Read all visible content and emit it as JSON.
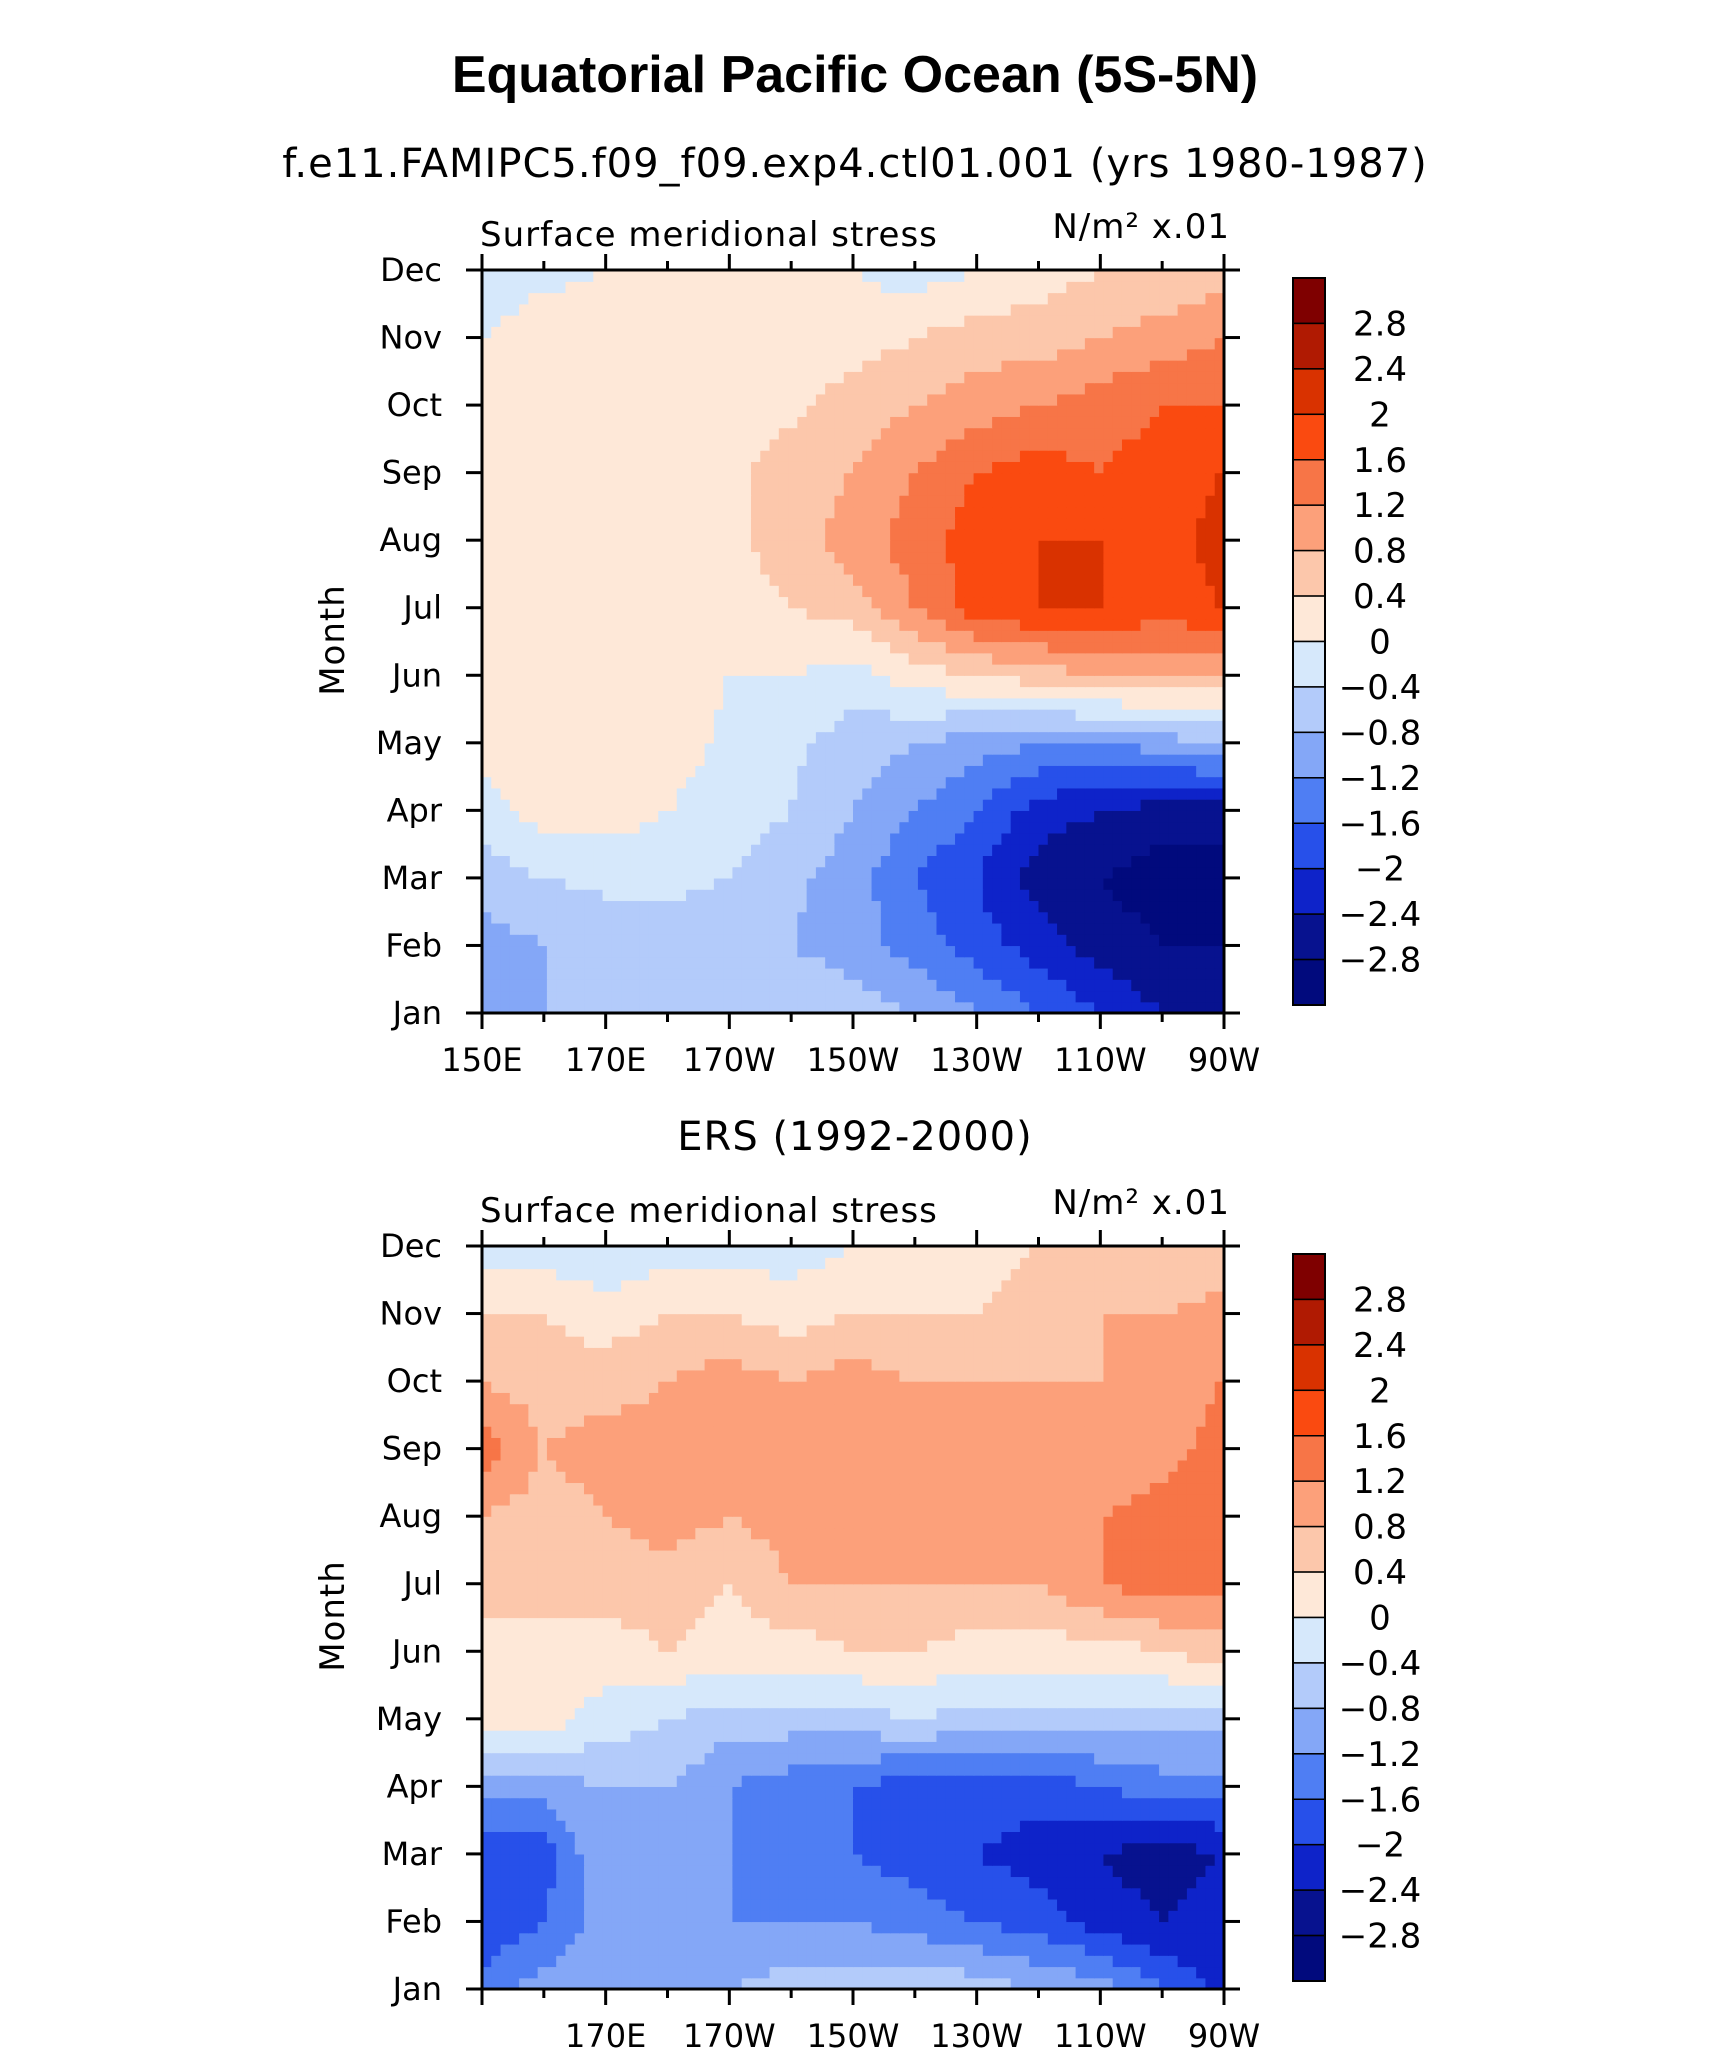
{
  "title": "Equatorial Pacific Ocean (5S-5N)",
  "chart_data": [
    {
      "type": "heatmap",
      "subtitle": "f.e11.FAMIPC5.f09_f09.exp4.ctl01.001 (yrs 1980-1987)",
      "left_label": "Surface meridional stress",
      "right_label": "N/m² x.01",
      "ylabel": "Month",
      "xlabel": "",
      "x_tick_labels": [
        "150E",
        "170E",
        "170W",
        "150W",
        "130W",
        "110W",
        "90W"
      ],
      "x": [
        150,
        160,
        170,
        180,
        190,
        200,
        210,
        220,
        230,
        240,
        250,
        260,
        270
      ],
      "y": [
        "Jan",
        "Feb",
        "Mar",
        "Apr",
        "May",
        "Jun",
        "Jul",
        "Aug",
        "Sep",
        "Oct",
        "Nov",
        "Dec"
      ],
      "z": [
        [
          -0.8,
          -0.8,
          -0.8,
          -0.6,
          -0.4,
          -0.4,
          -0.6,
          -0.8,
          -1.2,
          -1.6,
          -2.0,
          -2.4,
          -2.8
        ],
        [
          -1.0,
          -0.8,
          -0.7,
          -0.6,
          -0.6,
          -0.8,
          -1.0,
          -1.4,
          -1.8,
          -2.2,
          -2.6,
          -2.8,
          -2.8
        ],
        [
          -0.6,
          -0.4,
          -0.3,
          -0.3,
          -0.4,
          -0.7,
          -1.0,
          -1.6,
          -2.0,
          -2.6,
          -2.8,
          -3.0,
          -3.0
        ],
        [
          -0.2,
          0.2,
          0.2,
          0.0,
          -0.2,
          -0.4,
          -0.8,
          -1.2,
          -1.6,
          -2.2,
          -2.4,
          -2.6,
          -2.6
        ],
        [
          0.2,
          0.2,
          0.2,
          0.2,
          -0.1,
          -0.3,
          -0.6,
          -0.8,
          -1.0,
          -1.2,
          -1.2,
          -1.0,
          -0.8
        ],
        [
          0.2,
          0.2,
          0.2,
          0.2,
          0.0,
          0.0,
          -0.2,
          0.2,
          0.4,
          0.6,
          0.8,
          0.8,
          0.8
        ],
        [
          0.4,
          0.2,
          0.2,
          0.2,
          0.2,
          0.4,
          0.6,
          1.2,
          1.8,
          2.0,
          2.0,
          1.8,
          2.0
        ],
        [
          0.4,
          0.2,
          0.2,
          0.2,
          0.3,
          0.6,
          1.0,
          1.4,
          1.8,
          2.0,
          2.0,
          1.8,
          2.2
        ],
        [
          0.4,
          0.2,
          0.2,
          0.2,
          0.3,
          0.6,
          0.8,
          1.2,
          1.6,
          1.8,
          1.6,
          1.8,
          2.0
        ],
        [
          0.2,
          0.2,
          0.2,
          0.2,
          0.2,
          0.3,
          0.6,
          0.8,
          1.0,
          1.2,
          1.4,
          1.6,
          1.6
        ],
        [
          0.0,
          0.2,
          0.2,
          0.2,
          0.2,
          0.2,
          0.2,
          0.4,
          0.6,
          0.6,
          0.8,
          1.0,
          1.2
        ],
        [
          -0.2,
          -0.1,
          0.0,
          0.2,
          0.2,
          0.2,
          0.0,
          -0.2,
          0.0,
          0.2,
          0.4,
          0.4,
          0.6
        ]
      ],
      "levels": [
        -2.8,
        -2.4,
        -2.0,
        -1.6,
        -1.2,
        -0.8,
        -0.4,
        0,
        0.4,
        0.8,
        1.2,
        1.6,
        2.0,
        2.4,
        2.8
      ],
      "colorbar_labels": [
        "2.8",
        "2.4",
        "2",
        "1.6",
        "1.2",
        "0.8",
        "0.4",
        "0",
        "−0.4",
        "−0.8",
        "−1.2",
        "−1.6",
        "−2",
        "−2.4",
        "−2.8"
      ]
    },
    {
      "type": "heatmap",
      "subtitle": "ERS (1992-2000)",
      "left_label": "Surface meridional stress",
      "right_label": "N/m² x.01",
      "ylabel": "Month",
      "xlabel": "",
      "x_tick_labels": [
        "170E",
        "170W",
        "150W",
        "130W",
        "110W",
        "90W"
      ],
      "x": [
        150,
        160,
        170,
        180,
        190,
        200,
        210,
        220,
        230,
        240,
        250,
        260,
        270
      ],
      "y": [
        "Jan",
        "Feb",
        "Mar",
        "Apr",
        "May",
        "Jun",
        "Jul",
        "Aug",
        "Sep",
        "Oct",
        "Nov",
        "Dec"
      ],
      "z": [
        [
          -1.4,
          -1.0,
          -0.8,
          -0.8,
          -0.8,
          -0.6,
          -0.6,
          -0.4,
          -0.6,
          -0.8,
          -1.0,
          -1.6,
          -2.2
        ],
        [
          -2.0,
          -1.6,
          -1.0,
          -1.2,
          -1.2,
          -1.2,
          -1.2,
          -1.4,
          -1.6,
          -1.8,
          -2.2,
          -2.4,
          -2.2
        ],
        [
          -2.0,
          -1.8,
          -0.8,
          -1.2,
          -1.2,
          -1.4,
          -1.6,
          -1.8,
          -2.0,
          -2.2,
          -2.4,
          -2.6,
          -2.4
        ],
        [
          -1.0,
          -1.0,
          -0.8,
          -0.8,
          -1.2,
          -1.4,
          -1.6,
          -1.8,
          -1.8,
          -1.8,
          -1.6,
          -1.4,
          -1.4
        ],
        [
          0.2,
          0.2,
          -0.2,
          -0.4,
          -0.6,
          -0.6,
          -0.6,
          -0.4,
          -0.6,
          -0.6,
          -0.6,
          -0.6,
          -0.6
        ],
        [
          0.2,
          0.4,
          0.2,
          0.4,
          0.2,
          0.2,
          0.4,
          0.4,
          0.2,
          0.2,
          0.2,
          0.4,
          0.6
        ],
        [
          0.6,
          0.4,
          0.6,
          0.6,
          0.4,
          0.8,
          0.8,
          0.8,
          0.8,
          0.8,
          1.2,
          1.4,
          1.4
        ],
        [
          0.8,
          0.6,
          0.8,
          1.0,
          0.8,
          1.0,
          1.0,
          1.0,
          1.0,
          0.8,
          1.2,
          1.4,
          1.6
        ],
        [
          1.4,
          0.8,
          1.0,
          1.0,
          1.2,
          1.0,
          1.0,
          1.0,
          1.0,
          0.8,
          0.8,
          1.0,
          1.4
        ],
        [
          0.8,
          0.6,
          0.6,
          0.8,
          1.0,
          0.8,
          1.0,
          0.8,
          0.8,
          0.8,
          0.8,
          1.0,
          1.2
        ],
        [
          0.4,
          0.4,
          0.2,
          0.4,
          0.4,
          0.2,
          0.4,
          0.4,
          0.4,
          0.6,
          0.8,
          0.8,
          1.0
        ],
        [
          -0.2,
          -0.2,
          -0.4,
          -0.2,
          -0.2,
          -0.2,
          0.0,
          0.2,
          0.2,
          0.4,
          0.4,
          0.4,
          0.4
        ]
      ],
      "levels": [
        -2.8,
        -2.4,
        -2.0,
        -1.6,
        -1.2,
        -0.8,
        -0.4,
        0,
        0.4,
        0.8,
        1.2,
        1.6,
        2.0,
        2.4,
        2.8
      ],
      "colorbar_labels": [
        "2.8",
        "2.4",
        "2",
        "1.6",
        "1.2",
        "0.8",
        "0.4",
        "0",
        "−0.4",
        "−0.8",
        "−1.2",
        "−1.6",
        "−2",
        "−2.4",
        "−2.8"
      ]
    }
  ],
  "colors": {
    "scale_high_to_low": [
      "#7f0000",
      "#b01a02",
      "#d93200",
      "#fa4a10",
      "#f77547",
      "#fca07a",
      "#fcc7ab",
      "#fee8d8",
      "#d6e8fb",
      "#b3cbfa",
      "#84a7f7",
      "#4f7ef3",
      "#2750ea",
      "#0e23c9",
      "#07128f",
      "#010a7d"
    ]
  }
}
